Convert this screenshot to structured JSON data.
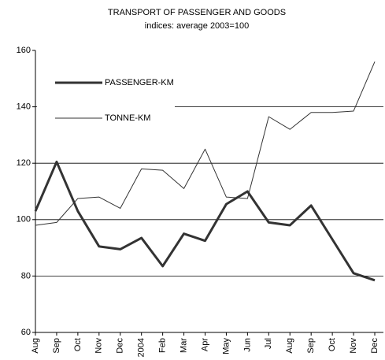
{
  "chart_data": {
    "type": "line",
    "title": "TRANSPORT OF PASSENGER AND GOODS",
    "subtitle": "indices: average 2003=100",
    "categories": [
      "Aug",
      "Sep",
      "Oct",
      "Nov",
      "Dec",
      "2004",
      "Feb",
      "Mar",
      "Apr",
      "May",
      "Jun",
      "Jul",
      "Aug",
      "Sep",
      "Oct",
      "Nov",
      "Dec"
    ],
    "series": [
      {
        "name": "PASSENGER-KM",
        "color": "#333333",
        "linewidth": 3,
        "values": [
          103,
          120.5,
          103,
          90.5,
          89.5,
          93.5,
          83.5,
          95,
          92.5,
          105.5,
          110,
          99,
          98,
          105,
          93,
          81,
          78.5
        ]
      },
      {
        "name": "TONNE-KM",
        "color": "#333333",
        "linewidth": 1,
        "values": [
          98,
          99,
          107.5,
          108,
          104,
          118,
          117.5,
          111,
          125,
          108,
          107.5,
          136.5,
          132,
          138,
          138,
          138.5,
          156
        ]
      }
    ],
    "ylim": [
      60,
      160
    ],
    "yticks": [
      60,
      80,
      100,
      120,
      140,
      160
    ],
    "grid": true,
    "legend": "upper-left"
  }
}
